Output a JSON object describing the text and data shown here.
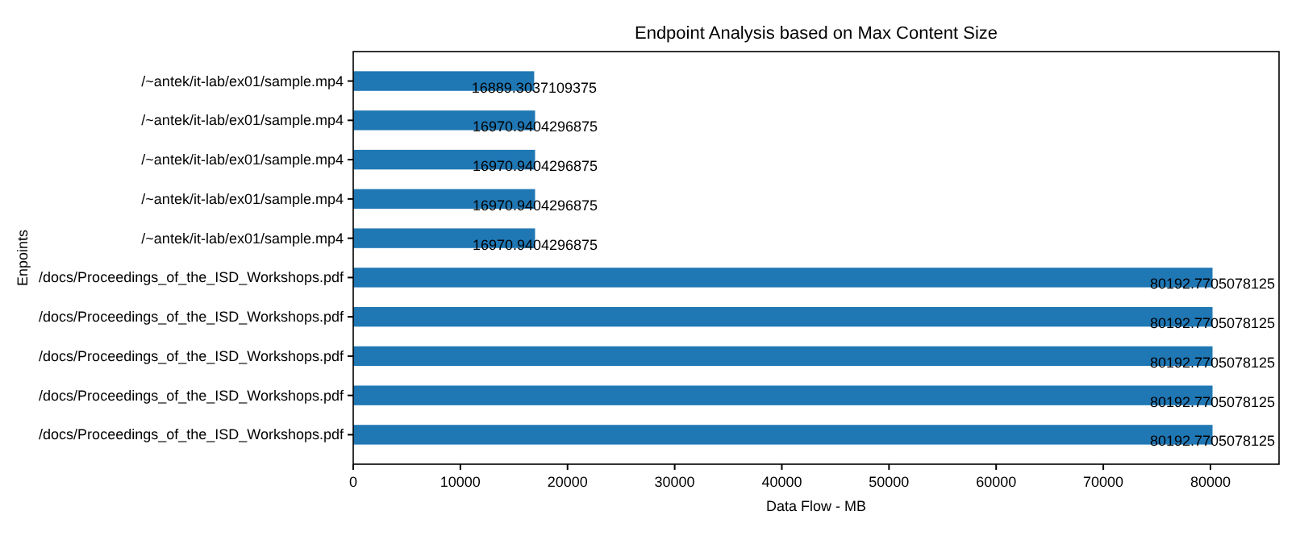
{
  "chart_data": {
    "type": "bar",
    "orientation": "horizontal",
    "title": "Endpoint Analysis based on Max Content Size",
    "xlabel": "Data Flow - MB",
    "ylabel": "Enpoints",
    "categories": [
      "/~antek/it-lab/ex01/sample.mp4",
      "/~antek/it-lab/ex01/sample.mp4",
      "/~antek/it-lab/ex01/sample.mp4",
      "/~antek/it-lab/ex01/sample.mp4",
      "/~antek/it-lab/ex01/sample.mp4",
      "/docs/Proceedings_of_the_ISD_Workshops.pdf",
      "/docs/Proceedings_of_the_ISD_Workshops.pdf",
      "/docs/Proceedings_of_the_ISD_Workshops.pdf",
      "/docs/Proceedings_of_the_ISD_Workshops.pdf",
      "/docs/Proceedings_of_the_ISD_Workshops.pdf"
    ],
    "values": [
      16889.3037109375,
      16970.9404296875,
      16970.9404296875,
      16970.9404296875,
      16970.9404296875,
      80192.7705078125,
      80192.7705078125,
      80192.7705078125,
      80192.7705078125,
      80192.7705078125
    ],
    "color": "#1f77b4",
    "data_labels": true,
    "xlim": [
      0,
      86400
    ],
    "xticks": [
      0,
      10000,
      20000,
      30000,
      40000,
      50000,
      60000,
      70000,
      80000
    ],
    "grid": false
  }
}
